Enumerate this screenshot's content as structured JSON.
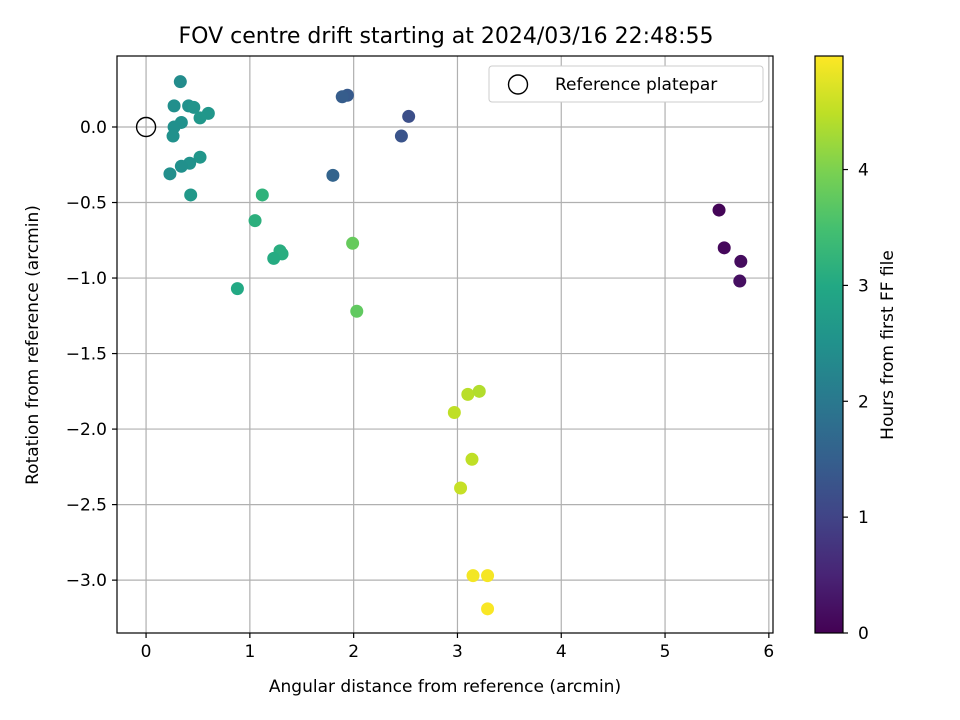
{
  "chart_data": {
    "type": "scatter",
    "title": "FOV centre drift starting at 2024/03/16 22:48:55",
    "xlabel": "Angular distance from reference (arcmin)",
    "ylabel": "Rotation from reference (arcmin)",
    "xlim": [
      -0.28,
      6.04
    ],
    "ylim": [
      -3.35,
      0.47
    ],
    "xticks": [
      0,
      1,
      2,
      3,
      4,
      5,
      6
    ],
    "xtick_labels": [
      "0",
      "1",
      "2",
      "3",
      "4",
      "5",
      "6"
    ],
    "yticks": [
      0.0,
      -0.5,
      -1.0,
      -1.5,
      -2.0,
      -2.5,
      -3.0
    ],
    "ytick_labels": [
      "0.0",
      "−0.5",
      "−1.0",
      "−1.5",
      "−2.0",
      "−2.5",
      "−3.0"
    ],
    "grid": true,
    "legend": {
      "position": "top-right",
      "entries": [
        "Reference platepar"
      ]
    },
    "reference_point": {
      "x": 0.0,
      "y": 0.0
    },
    "colorbar": {
      "label": "Hours from first FF file",
      "range": [
        0,
        4.98
      ],
      "ticks": [
        0,
        1,
        2,
        3,
        4
      ],
      "tick_labels": [
        "0",
        "1",
        "2",
        "3",
        "4"
      ],
      "colormap": "viridis"
    },
    "points": [
      {
        "x": 5.52,
        "y": -0.55,
        "hours": 0.05
      },
      {
        "x": 5.57,
        "y": -0.8,
        "hours": 0.1
      },
      {
        "x": 5.73,
        "y": -0.89,
        "hours": 0.15
      },
      {
        "x": 5.72,
        "y": -1.02,
        "hours": 0.2
      },
      {
        "x": 2.53,
        "y": 0.07,
        "hours": 1.2
      },
      {
        "x": 2.46,
        "y": -0.06,
        "hours": 1.3
      },
      {
        "x": 1.94,
        "y": 0.21,
        "hours": 1.4
      },
      {
        "x": 1.89,
        "y": 0.2,
        "hours": 1.45
      },
      {
        "x": 1.8,
        "y": -0.32,
        "hours": 1.6
      },
      {
        "x": 0.33,
        "y": 0.3,
        "hours": 2.4
      },
      {
        "x": 0.27,
        "y": 0.14,
        "hours": 2.45
      },
      {
        "x": 0.41,
        "y": 0.14,
        "hours": 2.5
      },
      {
        "x": 0.46,
        "y": 0.13,
        "hours": 2.55
      },
      {
        "x": 0.6,
        "y": 0.09,
        "hours": 2.6
      },
      {
        "x": 0.52,
        "y": 0.06,
        "hours": 2.62
      },
      {
        "x": 0.34,
        "y": 0.03,
        "hours": 2.5
      },
      {
        "x": 0.27,
        "y": 0.0,
        "hours": 2.48
      },
      {
        "x": 0.26,
        "y": -0.06,
        "hours": 2.5
      },
      {
        "x": 0.52,
        "y": -0.2,
        "hours": 2.6
      },
      {
        "x": 0.42,
        "y": -0.24,
        "hours": 2.52
      },
      {
        "x": 0.34,
        "y": -0.26,
        "hours": 2.48
      },
      {
        "x": 0.23,
        "y": -0.31,
        "hours": 2.45
      },
      {
        "x": 0.43,
        "y": -0.45,
        "hours": 2.65
      },
      {
        "x": 1.12,
        "y": -0.45,
        "hours": 3.2
      },
      {
        "x": 1.05,
        "y": -0.62,
        "hours": 3.15
      },
      {
        "x": 1.29,
        "y": -0.82,
        "hours": 3.1
      },
      {
        "x": 1.31,
        "y": -0.84,
        "hours": 3.1
      },
      {
        "x": 1.23,
        "y": -0.87,
        "hours": 3.05
      },
      {
        "x": 0.88,
        "y": -1.07,
        "hours": 3.0
      },
      {
        "x": 1.99,
        "y": -0.77,
        "hours": 3.8
      },
      {
        "x": 2.03,
        "y": -1.22,
        "hours": 3.75
      },
      {
        "x": 3.1,
        "y": -1.77,
        "hours": 4.45
      },
      {
        "x": 3.21,
        "y": -1.75,
        "hours": 4.4
      },
      {
        "x": 2.97,
        "y": -1.89,
        "hours": 4.5
      },
      {
        "x": 3.14,
        "y": -2.2,
        "hours": 4.5
      },
      {
        "x": 3.03,
        "y": -2.39,
        "hours": 4.55
      },
      {
        "x": 3.15,
        "y": -2.97,
        "hours": 4.9
      },
      {
        "x": 3.29,
        "y": -2.97,
        "hours": 4.92
      },
      {
        "x": 3.29,
        "y": -3.19,
        "hours": 4.95
      }
    ]
  }
}
